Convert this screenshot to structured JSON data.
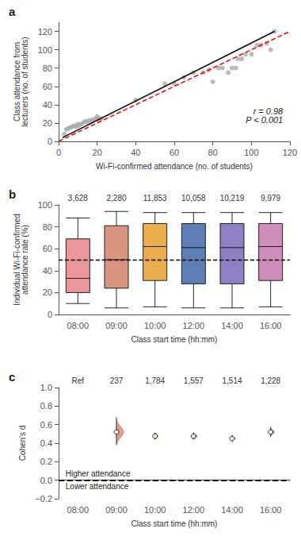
{
  "chart_data": [
    {
      "type": "scatter",
      "title": "a",
      "xlabel": "Wi-Fi-confirmed attendance (no. of students)",
      "ylabel": "Class attendance from\nlecturers (no. of students)",
      "xlim": [
        0,
        120
      ],
      "ylim": [
        0,
        130
      ],
      "xticks": [
        0,
        20,
        40,
        60,
        80,
        100,
        120
      ],
      "yticks": [
        0,
        20,
        40,
        60,
        80,
        100,
        120
      ],
      "grid": false,
      "annotations": [
        "r = 0.98\nP < 0.001"
      ],
      "series": [
        {
          "type": "scatter",
          "color": "#aaaaaa",
          "x": [
            3,
            4,
            5,
            6,
            7,
            8,
            9,
            10,
            10,
            11,
            12,
            13,
            14,
            15,
            16,
            17,
            18,
            19,
            20,
            20,
            21,
            22,
            40,
            55,
            60,
            65,
            70,
            75,
            78,
            80,
            83,
            85,
            88,
            90,
            92,
            93,
            95,
            97,
            100,
            103,
            105,
            108,
            110,
            112
          ],
          "values": [
            8,
            13,
            14,
            15,
            16,
            17,
            16,
            17,
            19,
            18,
            19,
            21,
            22,
            21,
            23,
            22,
            24,
            24,
            26,
            27,
            23,
            25,
            45,
            63,
            63,
            70,
            75,
            75,
            78,
            65,
            80,
            80,
            75,
            80,
            80,
            90,
            90,
            95,
            95,
            105,
            105,
            107,
            100,
            120
          ]
        },
        {
          "type": "line",
          "color": "#000000",
          "line_style": "solid",
          "x": [
            2,
            112
          ],
          "values": [
            4,
            120
          ]
        },
        {
          "type": "line",
          "color": "#ff0000",
          "line_style": "dashed",
          "x": [
            0,
            120
          ],
          "values": [
            0,
            120
          ]
        }
      ]
    },
    {
      "type": "box",
      "title": "b",
      "categories": [
        "08:00",
        "09:00",
        "10:00",
        "12:00",
        "14:00",
        "16:00"
      ],
      "n_labels": [
        "3,628",
        "2,280",
        "11,853",
        "10,058",
        "10,219",
        "9,979"
      ],
      "colors": [
        "#e8848a",
        "#d4826a",
        "#e8a030",
        "#4169a8",
        "#7b6ab8",
        "#c87ab0"
      ],
      "boxes": [
        {
          "whislo": 10,
          "q1": 20,
          "med": 33,
          "q3": 69,
          "whishi": 88
        },
        {
          "whislo": 6,
          "q1": 24,
          "med": 50,
          "q3": 81,
          "whishi": 94
        },
        {
          "whislo": 7,
          "q1": 31,
          "med": 62,
          "q3": 83,
          "whishi": 93
        },
        {
          "whislo": 6,
          "q1": 28,
          "med": 61,
          "q3": 83,
          "whishi": 93
        },
        {
          "whislo": 6,
          "q1": 28,
          "med": 61,
          "q3": 83,
          "whishi": 93
        },
        {
          "whislo": 7,
          "q1": 31,
          "med": 62,
          "q3": 83,
          "whishi": 93
        }
      ],
      "hline": 50,
      "xlabel": "Class start time (hh:mm)",
      "ylabel": "Individual Wi-Fi-confirmed\nattendance rate (%)",
      "ylim": [
        0,
        100
      ],
      "yticks": [
        0,
        20,
        40,
        60,
        80,
        100
      ],
      "grid": false
    },
    {
      "type": "violin",
      "title": "c",
      "categories": [
        "08:00",
        "09:00",
        "10:00",
        "12:00",
        "14:00",
        "16:00"
      ],
      "n_labels": [
        "Ref",
        "237",
        "1,784",
        "1,557",
        "1,514",
        "1,228"
      ],
      "colors": [
        "#d4826a",
        "#e8a030",
        "#3355aa",
        "#7070b8",
        "#b87cbc"
      ],
      "values": [
        null,
        0.52,
        0.475,
        0.475,
        0.45,
        0.52
      ],
      "ci_low": [
        null,
        0.38,
        0.44,
        0.44,
        0.415,
        0.47
      ],
      "ci_high": [
        null,
        0.68,
        0.515,
        0.515,
        0.485,
        0.575
      ],
      "spread": [
        null,
        0.2,
        0.1,
        0.1,
        0.09,
        0.11
      ],
      "hline": 0,
      "annotations": [
        "Higher attendance",
        "Lower attendance"
      ],
      "xlabel": "Class start time (hh:mm)",
      "ylabel": "Cohen's d",
      "ylim": [
        -0.2,
        1.0
      ],
      "yticks": [
        {
          "value": -0.2,
          "label": "−0.2"
        },
        {
          "value": 0,
          "label": "0.0"
        },
        0.2,
        0.4,
        0.6,
        0.8,
        {
          "value": 1.0,
          "label": "1.0"
        }
      ],
      "grid": false
    }
  ]
}
